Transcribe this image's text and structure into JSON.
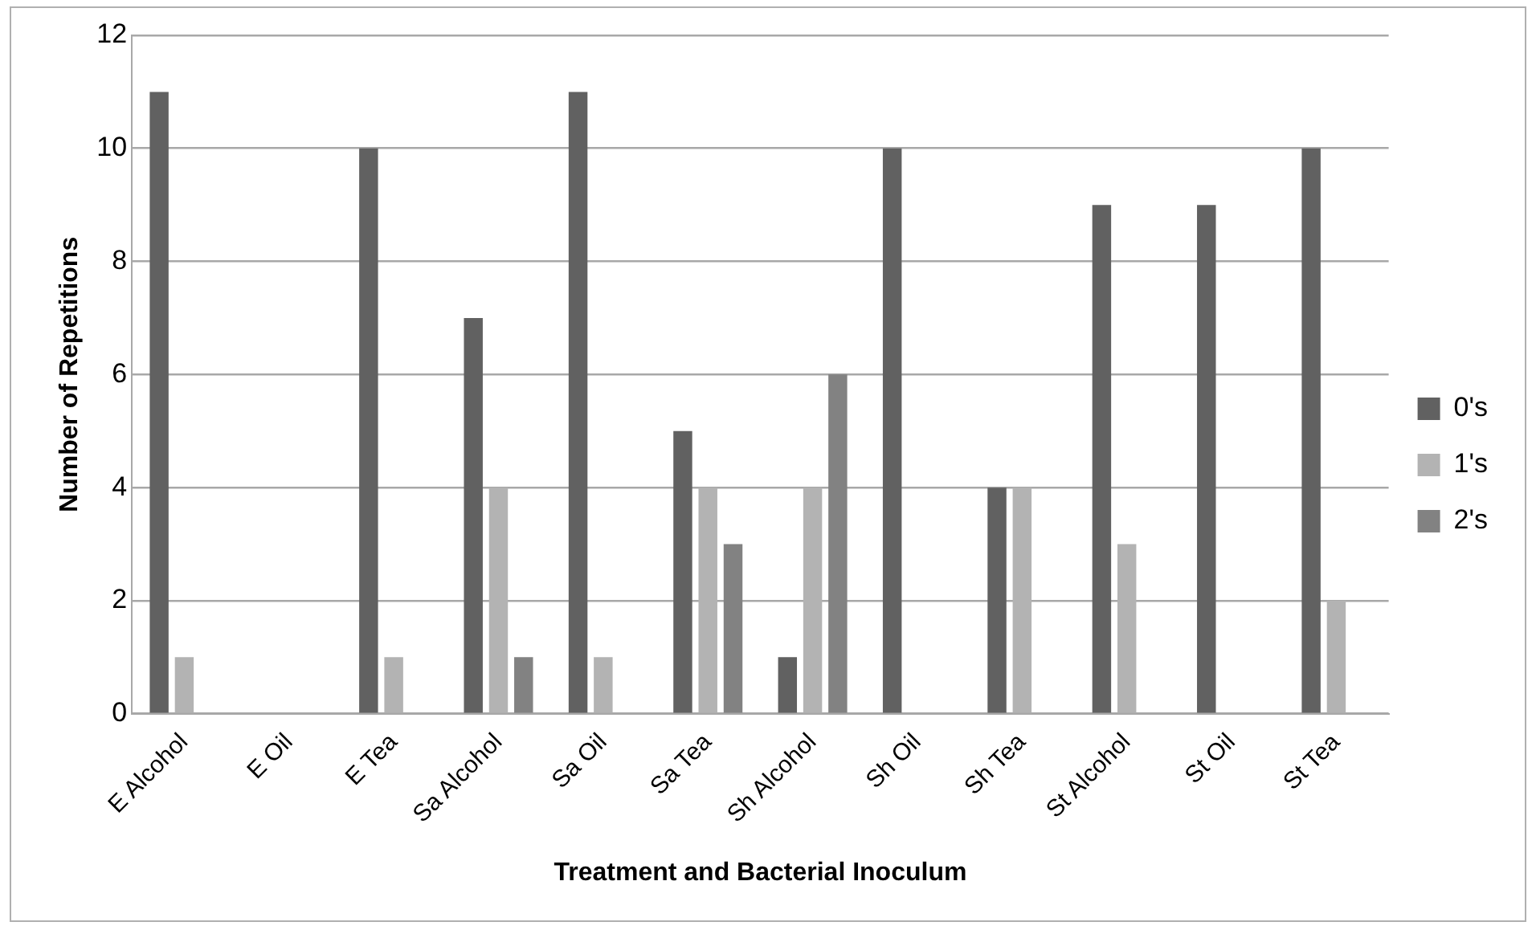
{
  "chart_data": {
    "type": "bar",
    "xlabel": "Treatment and Bacterial Inoculum",
    "ylabel": "Number of Repetitions",
    "categories": [
      "E Alcohol",
      "E Oil",
      "E Tea",
      "Sa Alcohol",
      "Sa Oil",
      "Sa Tea",
      "Sh Alcohol",
      "Sh Oil",
      "Sh Tea",
      "St Alcohol",
      "St Oil",
      "St Tea"
    ],
    "series": [
      {
        "name": "0's",
        "color": "#616161",
        "values": [
          11,
          0,
          10,
          7,
          11,
          5,
          1,
          10,
          4,
          9,
          9,
          10
        ]
      },
      {
        "name": "1's",
        "color": "#b3b3b3",
        "values": [
          1,
          0,
          1,
          4,
          1,
          4,
          4,
          0,
          4,
          3,
          0,
          2
        ]
      },
      {
        "name": "2's",
        "color": "#828282",
        "values": [
          0,
          0,
          0,
          1,
          0,
          3,
          6,
          0,
          0,
          0,
          0,
          0
        ]
      }
    ],
    "ylim": [
      0,
      12
    ],
    "yticks": [
      0,
      2,
      4,
      6,
      8,
      10,
      12
    ],
    "grid": "y",
    "legend": "right"
  }
}
